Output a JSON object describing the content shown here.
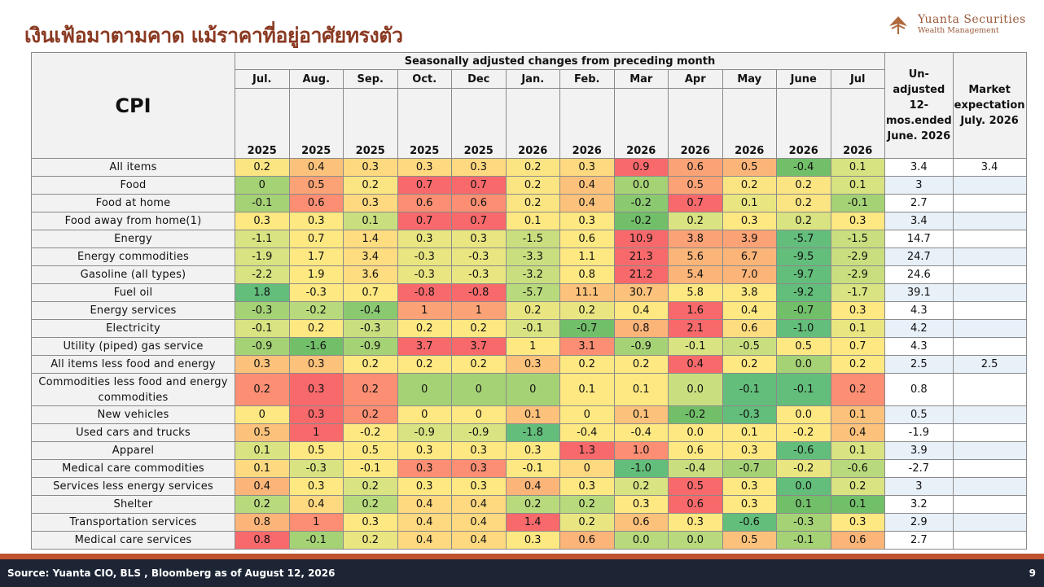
{
  "title": "เงินเฟ้อมาตามคาด แม้ราคาที่อยู่อาศัยทรงตัว",
  "logo": {
    "brand": "Yuanta Securities",
    "sub": "Wealth Management",
    "icon": "yuanta-logo-icon"
  },
  "table": {
    "corner": "CPI",
    "superheader": "Seasonally adjusted changes from preceding month",
    "months": [
      "Jul.",
      "Aug.",
      "Sep.",
      "Oct.",
      "Dec",
      "Jan.",
      "Feb.",
      "Mar",
      "Apr",
      "May",
      "June",
      "Jul"
    ],
    "years": [
      "2025",
      "2025",
      "2025",
      "2025",
      "2025",
      "2026",
      "2026",
      "2026",
      "2026",
      "2026",
      "2026",
      "2026"
    ],
    "unadjusted_header": "Un-adjusted 12-mos.ended June. 2026",
    "market_header": "Market expectation July. 2026",
    "rows": [
      {
        "label": "All items",
        "values": [
          "0.2",
          "0.4",
          "0.3",
          "0.3",
          "0.3",
          "0.2",
          "0.3",
          "0.9",
          "0.6",
          "0.5",
          "-0.4",
          "0.1"
        ],
        "colors": [
          "#fbe583",
          "#fcc27b",
          "#fed980",
          "#fed980",
          "#fed980",
          "#fbe583",
          "#fed980",
          "#f8696b",
          "#fba276",
          "#fcb579",
          "#72bf6a",
          "#d7e281"
        ],
        "unadjusted": "3.4",
        "market": "3.4",
        "bold": true
      },
      {
        "label": "Food",
        "values": [
          "0",
          "0.5",
          "0.2",
          "0.7",
          "0.7",
          "0.2",
          "0.4",
          "0.0",
          "0.5",
          "0.2",
          "0.2",
          "0.1"
        ],
        "colors": [
          "#a6d276",
          "#fba276",
          "#fbe583",
          "#f8696b",
          "#f8696b",
          "#fbe583",
          "#fcc27b",
          "#a6d276",
          "#fba276",
          "#fbe583",
          "#fbe583",
          "#d7e281"
        ],
        "unadjusted": "3",
        "market": ""
      },
      {
        "label": "Food at home",
        "values": [
          "-0.1",
          "0.6",
          "0.3",
          "0.6",
          "0.6",
          "0.2",
          "0.4",
          "-0.2",
          "0.7",
          "0.1",
          "0.2",
          "-0.1"
        ],
        "colors": [
          "#a6d276",
          "#fb8e73",
          "#fed980",
          "#fb8e73",
          "#fb8e73",
          "#fbe583",
          "#fcc27b",
          "#8bc971",
          "#f8696b",
          "#e9e682",
          "#fbe583",
          "#a6d276"
        ],
        "unadjusted": "2.7",
        "market": ""
      },
      {
        "label": "Food away from home(1)",
        "values": [
          "0.3",
          "0.3",
          "0.1",
          "0.7",
          "0.7",
          "0.1",
          "0.3",
          "-0.2",
          "0.2",
          "0.3",
          "0.2",
          "0.3"
        ],
        "colors": [
          "#fee882",
          "#fee882",
          "#c9df7f",
          "#f8696b",
          "#f8696b",
          "#fee882",
          "#fee882",
          "#72bf6a",
          "#d9e381",
          "#fee882",
          "#d9e381",
          "#fee882"
        ],
        "unadjusted": "3.4",
        "market": ""
      },
      {
        "label": "Energy",
        "values": [
          "-1.1",
          "0.7",
          "1.4",
          "0.3",
          "0.3",
          "-1.5",
          "0.6",
          "10.9",
          "3.8",
          "3.9",
          "-5.7",
          "-1.5"
        ],
        "colors": [
          "#d9e381",
          "#fee882",
          "#fedc80",
          "#e9e682",
          "#e9e682",
          "#c9df7f",
          "#fee882",
          "#f8696b",
          "#fba276",
          "#fba276",
          "#63be7b",
          "#c9df7f"
        ],
        "unadjusted": "14.7",
        "market": ""
      },
      {
        "label": "Energy commodities",
        "values": [
          "-1.9",
          "1.7",
          "3.4",
          "-0.3",
          "-0.3",
          "-3.3",
          "1.1",
          "21.3",
          "5.6",
          "6.7",
          "-9.5",
          "-2.9"
        ],
        "colors": [
          "#d9e381",
          "#fee882",
          "#fedc80",
          "#e9e682",
          "#e9e682",
          "#c9df7f",
          "#fee882",
          "#f8696b",
          "#fcb579",
          "#fcb579",
          "#63be7b",
          "#c9df7f"
        ],
        "unadjusted": "24.7",
        "market": ""
      },
      {
        "label": "Gasoline (all types)",
        "values": [
          "-2.2",
          "1.9",
          "3.6",
          "-0.3",
          "-0.3",
          "-3.2",
          "0.8",
          "21.2",
          "5.4",
          "7.0",
          "-9.7",
          "-2.9"
        ],
        "colors": [
          "#d9e381",
          "#fee882",
          "#fedc80",
          "#e9e682",
          "#e9e682",
          "#c9df7f",
          "#fee882",
          "#f8696b",
          "#fcb579",
          "#fcb579",
          "#63be7b",
          "#c9df7f"
        ],
        "unadjusted": "24.6",
        "market": ""
      },
      {
        "label": "Fuel oil",
        "values": [
          "1.8",
          "-0.3",
          "0.7",
          "-0.8",
          "-0.8",
          "-5.7",
          "11.1",
          "30.7",
          "5.8",
          "3.8",
          "-9.2",
          "-1.7"
        ],
        "colors": [
          "#63be7b",
          "#fee882",
          "#fee882",
          "#f8696b",
          "#f8696b",
          "#b9da7c",
          "#fcc27b",
          "#fcc27b",
          "#fee882",
          "#fee882",
          "#63be7b",
          "#d9e381"
        ],
        "unadjusted": "39.1",
        "market": ""
      },
      {
        "label": "Energy services",
        "values": [
          "-0.3",
          "-0.2",
          "-0.4",
          "1",
          "1",
          "0.2",
          "0.2",
          "0.4",
          "1.6",
          "0.4",
          "-0.7",
          "0.3"
        ],
        "colors": [
          "#a6d276",
          "#b9da7c",
          "#8bc971",
          "#fba276",
          "#fba276",
          "#e9e682",
          "#e9e682",
          "#fee882",
          "#f8696b",
          "#fee882",
          "#72bf6a",
          "#fee882"
        ],
        "unadjusted": "4.3",
        "market": ""
      },
      {
        "label": "Electricity",
        "values": [
          "-0.1",
          "0.2",
          "-0.3",
          "0.2",
          "0.2",
          "-0.1",
          "-0.7",
          "0.8",
          "2.1",
          "0.6",
          "-1.0",
          "0.1"
        ],
        "colors": [
          "#d9e381",
          "#fee882",
          "#c9df7f",
          "#fee882",
          "#fee882",
          "#d9e381",
          "#72bf6a",
          "#fcb579",
          "#f8696b",
          "#fedc80",
          "#63be7b",
          "#e9e682"
        ],
        "unadjusted": "4.2",
        "market": ""
      },
      {
        "label": "Utility (piped) gas service",
        "values": [
          "-0.9",
          "-1.6",
          "-0.9",
          "3.7",
          "3.7",
          "1",
          "3.1",
          "-0.9",
          "-0.1",
          "-0.5",
          "0.5",
          "0.7"
        ],
        "colors": [
          "#a6d276",
          "#72bf6a",
          "#a6d276",
          "#f8696b",
          "#f8696b",
          "#fee882",
          "#fb8e73",
          "#a6d276",
          "#d9e381",
          "#c9df7f",
          "#fee882",
          "#fee882"
        ],
        "unadjusted": "4.3",
        "market": ""
      },
      {
        "label": "All items less food and energy",
        "values": [
          "0.3",
          "0.3",
          "0.2",
          "0.2",
          "0.2",
          "0.3",
          "0.2",
          "0.2",
          "0.4",
          "0.2",
          "0.0",
          "0.2"
        ],
        "colors": [
          "#fcc27b",
          "#fcc27b",
          "#fee882",
          "#fee882",
          "#fee882",
          "#fcc27b",
          "#fee882",
          "#fee882",
          "#f8696b",
          "#fee882",
          "#a6d276",
          "#fee882"
        ],
        "unadjusted": "2.5",
        "market": "2.5",
        "bold": true
      },
      {
        "label": "Commodities less food and energy commodities",
        "values": [
          "0.2",
          "0.3",
          "0.2",
          "0",
          "0",
          "0",
          "0.1",
          "0.1",
          "0.0",
          "-0.1",
          "-0.1",
          "0.2"
        ],
        "colors": [
          "#fb8e73",
          "#f8696b",
          "#fb8e73",
          "#a6d276",
          "#a6d276",
          "#a6d276",
          "#fee882",
          "#fee882",
          "#c9df7f",
          "#63be7b",
          "#63be7b",
          "#fb8e73"
        ],
        "unadjusted": "0.8",
        "market": ""
      },
      {
        "label": "New vehicles",
        "values": [
          "0",
          "0.3",
          "0.2",
          "0",
          "0",
          "0.1",
          "0",
          "0.1",
          "-0.2",
          "-0.3",
          "0.0",
          "0.1"
        ],
        "colors": [
          "#fee882",
          "#f8696b",
          "#fb8e73",
          "#fee882",
          "#fee882",
          "#fcc27b",
          "#fee882",
          "#fcc27b",
          "#72bf6a",
          "#63be7b",
          "#fee882",
          "#fcc27b"
        ],
        "unadjusted": "0.5",
        "market": ""
      },
      {
        "label": "Used cars and trucks",
        "values": [
          "0.5",
          "1",
          "-0.2",
          "-0.9",
          "-0.9",
          "-1.8",
          "-0.4",
          "-0.4",
          "0.0",
          "0.1",
          "-0.2",
          "0.4"
        ],
        "colors": [
          "#fcc27b",
          "#f8696b",
          "#fee882",
          "#d9e381",
          "#d9e381",
          "#63be7b",
          "#fee882",
          "#fee882",
          "#fee882",
          "#fee882",
          "#fee882",
          "#fcc27b"
        ],
        "unadjusted": "-1.9",
        "market": ""
      },
      {
        "label": "Apparel",
        "values": [
          "0.1",
          "0.5",
          "0.5",
          "0.3",
          "0.3",
          "0.3",
          "1.3",
          "1.0",
          "0.6",
          "0.3",
          "-0.6",
          "0.1"
        ],
        "colors": [
          "#d9e381",
          "#fee882",
          "#fee882",
          "#fee882",
          "#fee882",
          "#fee882",
          "#f8696b",
          "#fb8e73",
          "#fee882",
          "#fee882",
          "#63be7b",
          "#d9e381"
        ],
        "unadjusted": "3.9",
        "market": ""
      },
      {
        "label": "Medical care commodities",
        "values": [
          "0.1",
          "-0.3",
          "-0.1",
          "0.3",
          "0.3",
          "-0.1",
          "0",
          "-1.0",
          "-0.4",
          "-0.7",
          "-0.2",
          "-0.6"
        ],
        "colors": [
          "#fed980",
          "#d9e381",
          "#fee882",
          "#fb8e73",
          "#fb8e73",
          "#fee882",
          "#fed980",
          "#63be7b",
          "#c9df7f",
          "#a6d276",
          "#e9e682",
          "#b9da7c"
        ],
        "unadjusted": "-2.7",
        "market": ""
      },
      {
        "label": "Services less energy services",
        "values": [
          "0.4",
          "0.3",
          "0.2",
          "0.3",
          "0.3",
          "0.4",
          "0.3",
          "0.2",
          "0.5",
          "0.3",
          "0.0",
          "0.2"
        ],
        "colors": [
          "#fcb579",
          "#fee882",
          "#d9e381",
          "#fee882",
          "#fee882",
          "#fcb579",
          "#fee882",
          "#d9e381",
          "#f8696b",
          "#fee882",
          "#63be7b",
          "#d9e381"
        ],
        "unadjusted": "3",
        "market": ""
      },
      {
        "label": "Shelter",
        "values": [
          "0.2",
          "0.4",
          "0.2",
          "0.4",
          "0.4",
          "0.2",
          "0.2",
          "0.3",
          "0.6",
          "0.3",
          "0.1",
          "0.1"
        ],
        "colors": [
          "#b9da7c",
          "#fed980",
          "#b9da7c",
          "#fed980",
          "#fed980",
          "#b9da7c",
          "#b9da7c",
          "#fee882",
          "#f8696b",
          "#fee882",
          "#72bf6a",
          "#72bf6a"
        ],
        "unadjusted": "3.2",
        "market": ""
      },
      {
        "label": "Transportation services",
        "values": [
          "0.8",
          "1",
          "0.3",
          "0.4",
          "0.4",
          "1.4",
          "0.2",
          "0.6",
          "0.3",
          "-0.6",
          "-0.3",
          "0.3"
        ],
        "colors": [
          "#fcb579",
          "#fb8e73",
          "#fee882",
          "#fed980",
          "#fed980",
          "#f8696b",
          "#e9e682",
          "#fcc27b",
          "#fee882",
          "#63be7b",
          "#a6d276",
          "#fee882"
        ],
        "unadjusted": "2.9",
        "market": ""
      },
      {
        "label": "Medical care services",
        "values": [
          "0.8",
          "-0.1",
          "0.2",
          "0.4",
          "0.4",
          "0.3",
          "0.6",
          "0.0",
          "0.0",
          "0.5",
          "-0.1",
          "0.6"
        ],
        "colors": [
          "#f8696b",
          "#a6d276",
          "#e9e682",
          "#fed980",
          "#fed980",
          "#fee882",
          "#fcb579",
          "#b9da7c",
          "#b9da7c",
          "#fcc27b",
          "#a6d276",
          "#fcb579"
        ],
        "unadjusted": "2.7",
        "market": ""
      }
    ]
  },
  "footer": {
    "source": "Source: Yuanta CIO, BLS , Bloomberg as of August 12, 2026",
    "page": "9"
  }
}
